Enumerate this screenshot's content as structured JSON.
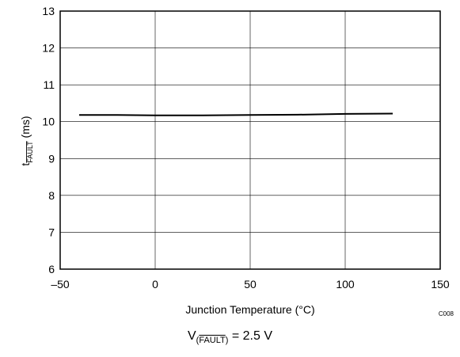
{
  "chart_data": {
    "type": "line",
    "xlabel": "Junction Temperature (°C)",
    "ylabel": {
      "main": "t",
      "sub": "FAULT",
      "unit": "(ms)"
    },
    "xlim": [
      -50,
      150
    ],
    "ylim": [
      6,
      13
    ],
    "xticks": [
      -50,
      0,
      50,
      100,
      150
    ],
    "xtick_labels": [
      "–50",
      "0",
      "50",
      "100",
      "150"
    ],
    "yticks": [
      6,
      7,
      8,
      9,
      10,
      11,
      12,
      13
    ],
    "grid": true,
    "series": [
      {
        "color": "#000000",
        "x": [
          -40,
          -20,
          0,
          25,
          50,
          75,
          100,
          125
        ],
        "y": [
          10.18,
          10.18,
          10.17,
          10.17,
          10.18,
          10.19,
          10.21,
          10.22
        ]
      }
    ],
    "code_label": "C008"
  },
  "caption": {
    "prefix": "V",
    "sub_open": "(",
    "sub_over": "FAULT",
    "sub_close": ")",
    "suffix": " = 2.5 V"
  }
}
